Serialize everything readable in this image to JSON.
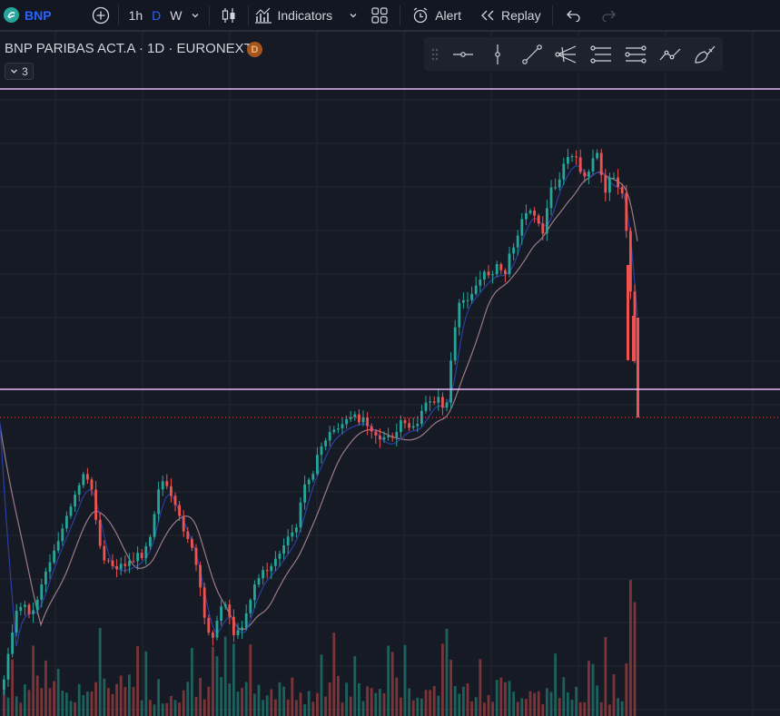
{
  "toolbar": {
    "symbol": "BNP",
    "intervals": [
      {
        "label": "1h",
        "active": false
      },
      {
        "label": "D",
        "active": true
      },
      {
        "label": "W",
        "active": false
      }
    ],
    "indicators_label": "Indicators",
    "alert_label": "Alert",
    "replay_label": "Replay"
  },
  "legend": {
    "title": "BNP PARIBAS ACT.A · 1D · EURONEXT",
    "badge": "D",
    "collapsed_count": "3"
  },
  "drawing_toolbar": {
    "tools": [
      "horizontal-ray-icon",
      "vertical-line-icon",
      "trend-line-icon",
      "pitchfork-icon",
      "parallel-channel-icon",
      "regression-icon",
      "path-icon",
      "brush-icon"
    ]
  },
  "colors": {
    "up": "#26a69a",
    "down": "#ef5350",
    "sma_fast": "#2a3fa3",
    "sma_slow": "#9c7b86",
    "hline": "#e7b8f5",
    "accent": "#2962ff"
  }
}
